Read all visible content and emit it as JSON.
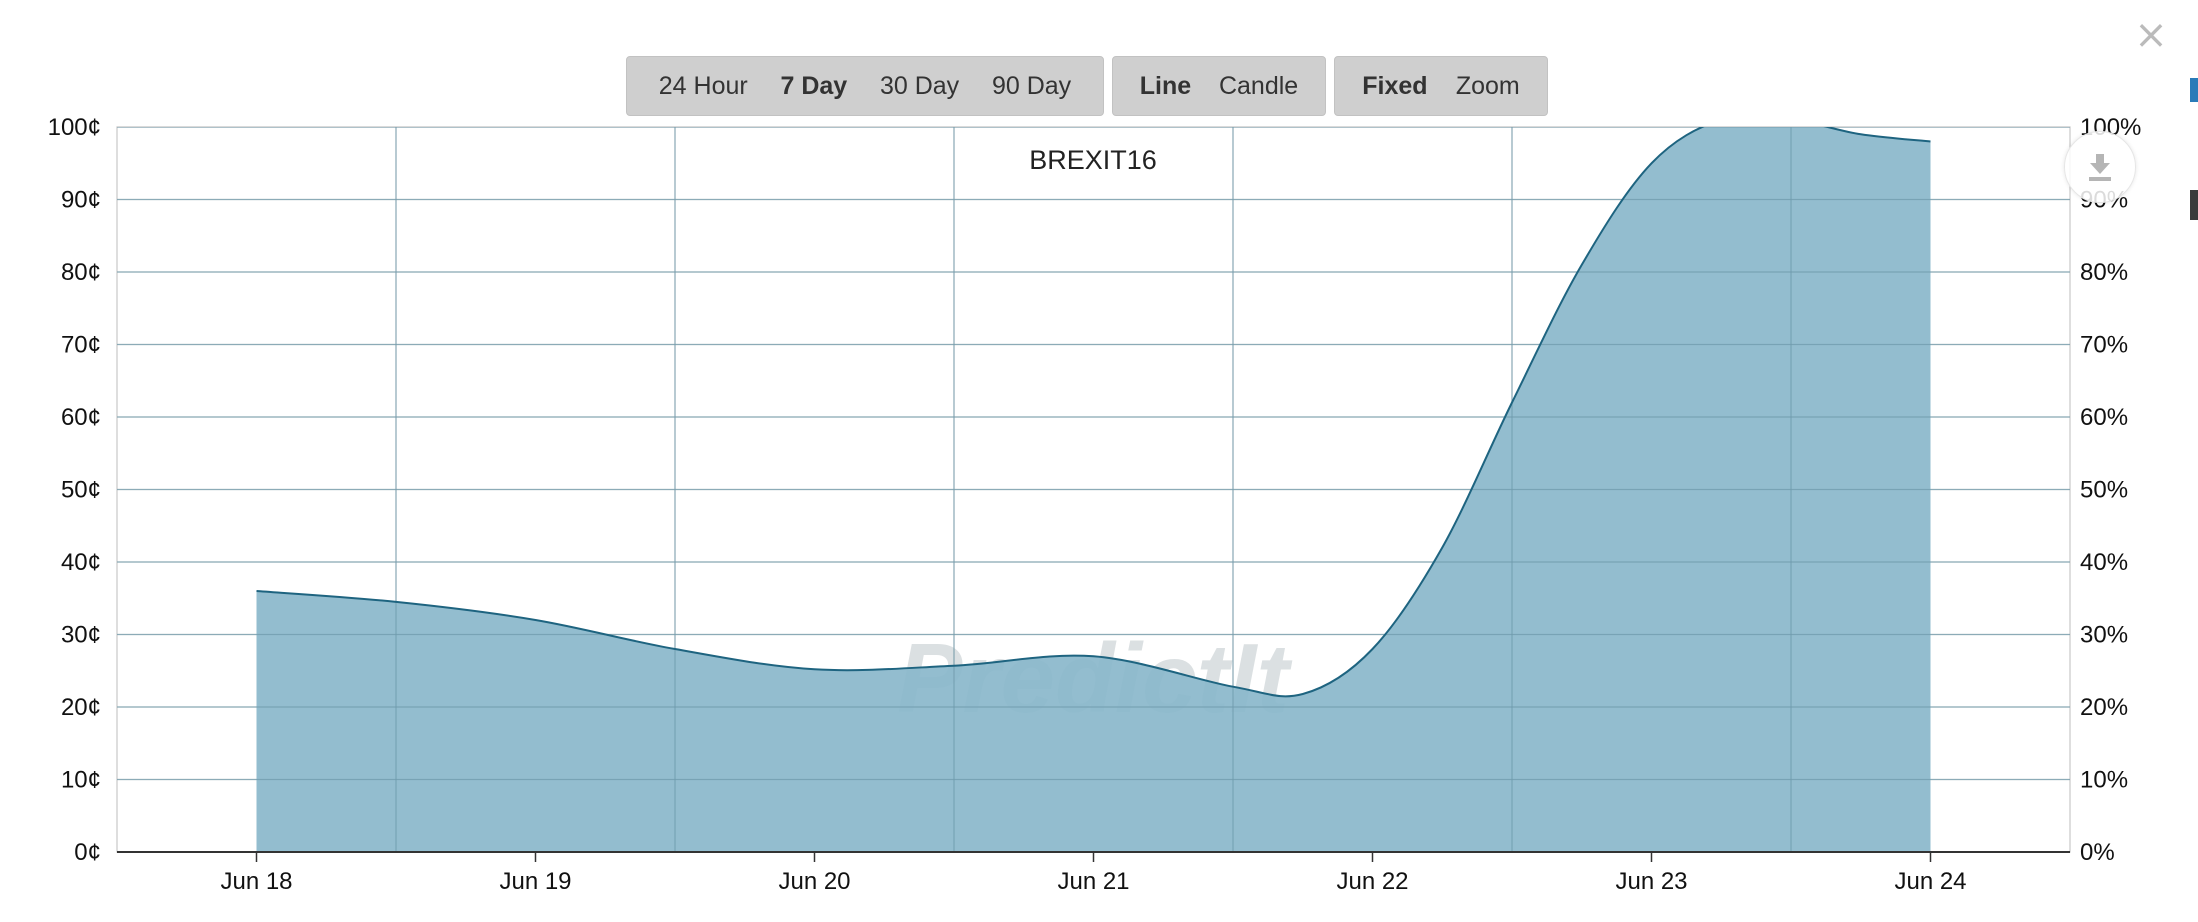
{
  "toolbar": {
    "range_group": [
      {
        "label": "24 Hour",
        "active": false
      },
      {
        "label": "7 Day",
        "active": true
      },
      {
        "label": "30 Day",
        "active": false
      },
      {
        "label": "90 Day",
        "active": false
      }
    ],
    "style_group": [
      {
        "label": "Line",
        "active": true
      },
      {
        "label": "Candle",
        "active": false
      }
    ],
    "scale_group": [
      {
        "label": "Fixed",
        "active": true
      },
      {
        "label": "Zoom",
        "active": false
      }
    ]
  },
  "close_glyph": "×",
  "download_icon": "download-icon",
  "watermark": "PredictIt",
  "colors": {
    "area_fill": "#8ab7cb",
    "line": "#1e6480",
    "grid": "#cfcfcf",
    "axis": "#333333"
  },
  "chart_data": {
    "type": "area",
    "title": "BREXIT16",
    "xlabel": "",
    "ylabel": "",
    "x_ticks": [
      "Jun 18",
      "Jun 19",
      "Jun 20",
      "Jun 21",
      "Jun 22",
      "Jun 23",
      "Jun 24"
    ],
    "y_left_ticks": [
      "0¢",
      "10¢",
      "20¢",
      "30¢",
      "40¢",
      "50¢",
      "60¢",
      "70¢",
      "80¢",
      "90¢",
      "100¢"
    ],
    "y_right_ticks": [
      "0%",
      "10%",
      "20%",
      "30%",
      "40%",
      "50%",
      "60%",
      "70%",
      "80%",
      "90%",
      "100%"
    ],
    "ylim": [
      0,
      100
    ],
    "xlim": [
      "Jun 17 12:00",
      "Jun 24 12:00"
    ],
    "grid": true,
    "legend": "none",
    "series": [
      {
        "x": [
          "Jun 18 00:00",
          "Jun 18 12:00",
          "Jun 19 00:00",
          "Jun 19 12:00",
          "Jun 20 00:00",
          "Jun 20 12:00",
          "Jun 21 00:00",
          "Jun 21 12:00",
          "Jun 21 18:00",
          "Jun 22 00:00",
          "Jun 22 06:00",
          "Jun 22 12:00",
          "Jun 22 18:00",
          "Jun 23 00:00",
          "Jun 23 06:00",
          "Jun 23 12:00",
          "Jun 23 18:00",
          "Jun 24 00:00"
        ],
        "values": [
          36,
          34.5,
          32,
          28,
          25.2,
          25.7,
          27,
          22.8,
          21.8,
          28,
          42,
          62,
          81,
          95,
          101,
          101,
          99,
          98
        ]
      }
    ]
  }
}
